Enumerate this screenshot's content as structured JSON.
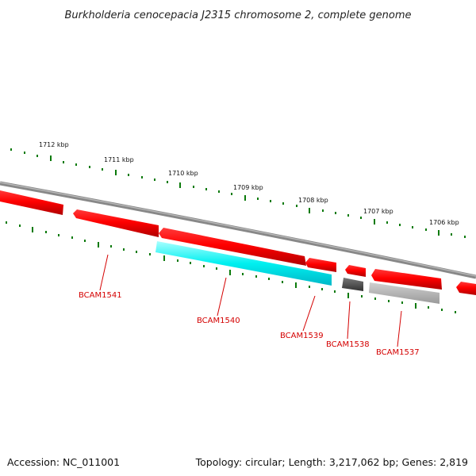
{
  "title": "Burkholderia cenocepacia J2315 chromosome 2, complete genome",
  "footer": {
    "accession": "Accession: NC_011001",
    "topology": "Topology: circular; Length: 3,217,062 bp; Genes: 2,819"
  },
  "ruler": [
    {
      "label": "1712 kbp"
    },
    {
      "label": "1711 kbp"
    },
    {
      "label": "1710 kbp"
    },
    {
      "label": "1709 kbp"
    },
    {
      "label": "1708 kbp"
    },
    {
      "label": "1707 kbp"
    },
    {
      "label": "1706 kbp"
    }
  ],
  "gene_labels": [
    {
      "label": "BCAM1541"
    },
    {
      "label": "BCAM1540"
    },
    {
      "label": "BCAM1539"
    },
    {
      "label": "BCAM1538"
    },
    {
      "label": "BCAM1537"
    }
  ],
  "colors": {
    "gene_red": "#ff0000",
    "gene_cyan": "#00ffff",
    "gene_dark_gray": "#555555",
    "gene_light_gray": "#b8b8b8",
    "backbone": "#888888",
    "tick_green": "#0a7a0a",
    "label_red": "#d40000"
  }
}
